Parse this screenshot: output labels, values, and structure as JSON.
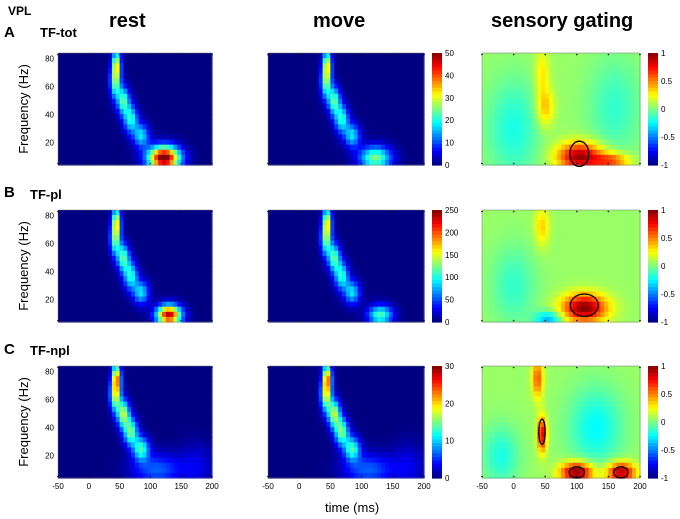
{
  "figure": {
    "region_label": "VPL",
    "column_titles": [
      "rest",
      "move",
      "sensory gating"
    ],
    "x_axis_label": "time (ms)",
    "y_axis_label": "Frequency (Hz)"
  },
  "chart_data": {
    "type": "heatmap",
    "colormap": "jet",
    "x_ticks": [
      -50,
      0,
      50,
      100,
      150,
      200
    ],
    "y_ticks": [
      20,
      40,
      60,
      80
    ],
    "xlim": [
      -50,
      200
    ],
    "ylim": [
      4,
      84
    ],
    "rows": [
      {
        "panel_letter": "A",
        "label": "TF-tot",
        "power_colorbar": {
          "min": 0,
          "max": 50,
          "ticks": [
            0,
            10,
            20,
            30,
            40,
            50
          ]
        },
        "gating_colorbar": {
          "min": -1,
          "max": 1,
          "ticks": [
            "1",
            "0.5",
            "0",
            "-0.5",
            "-1"
          ]
        }
      },
      {
        "panel_letter": "B",
        "label": "TF-pl",
        "power_colorbar": {
          "min": 0,
          "max": 250,
          "ticks": [
            0,
            50,
            100,
            150,
            200,
            250
          ]
        },
        "gating_colorbar": {
          "min": -1,
          "max": 1,
          "ticks": [
            "1",
            "0.5",
            "0",
            "-0.5",
            "-1"
          ]
        }
      },
      {
        "panel_letter": "C",
        "label": "TF-npl",
        "power_colorbar": {
          "min": 0,
          "max": 30,
          "ticks": [
            0,
            10,
            20,
            30
          ]
        },
        "gating_colorbar": {
          "min": -1,
          "max": 1,
          "ticks": [
            "1",
            "0.5",
            "0",
            "-0.5",
            "-1"
          ]
        }
      }
    ]
  },
  "colors": {
    "jet_low": "#00008f",
    "jet_high": "#800000",
    "contour": "#000000"
  }
}
